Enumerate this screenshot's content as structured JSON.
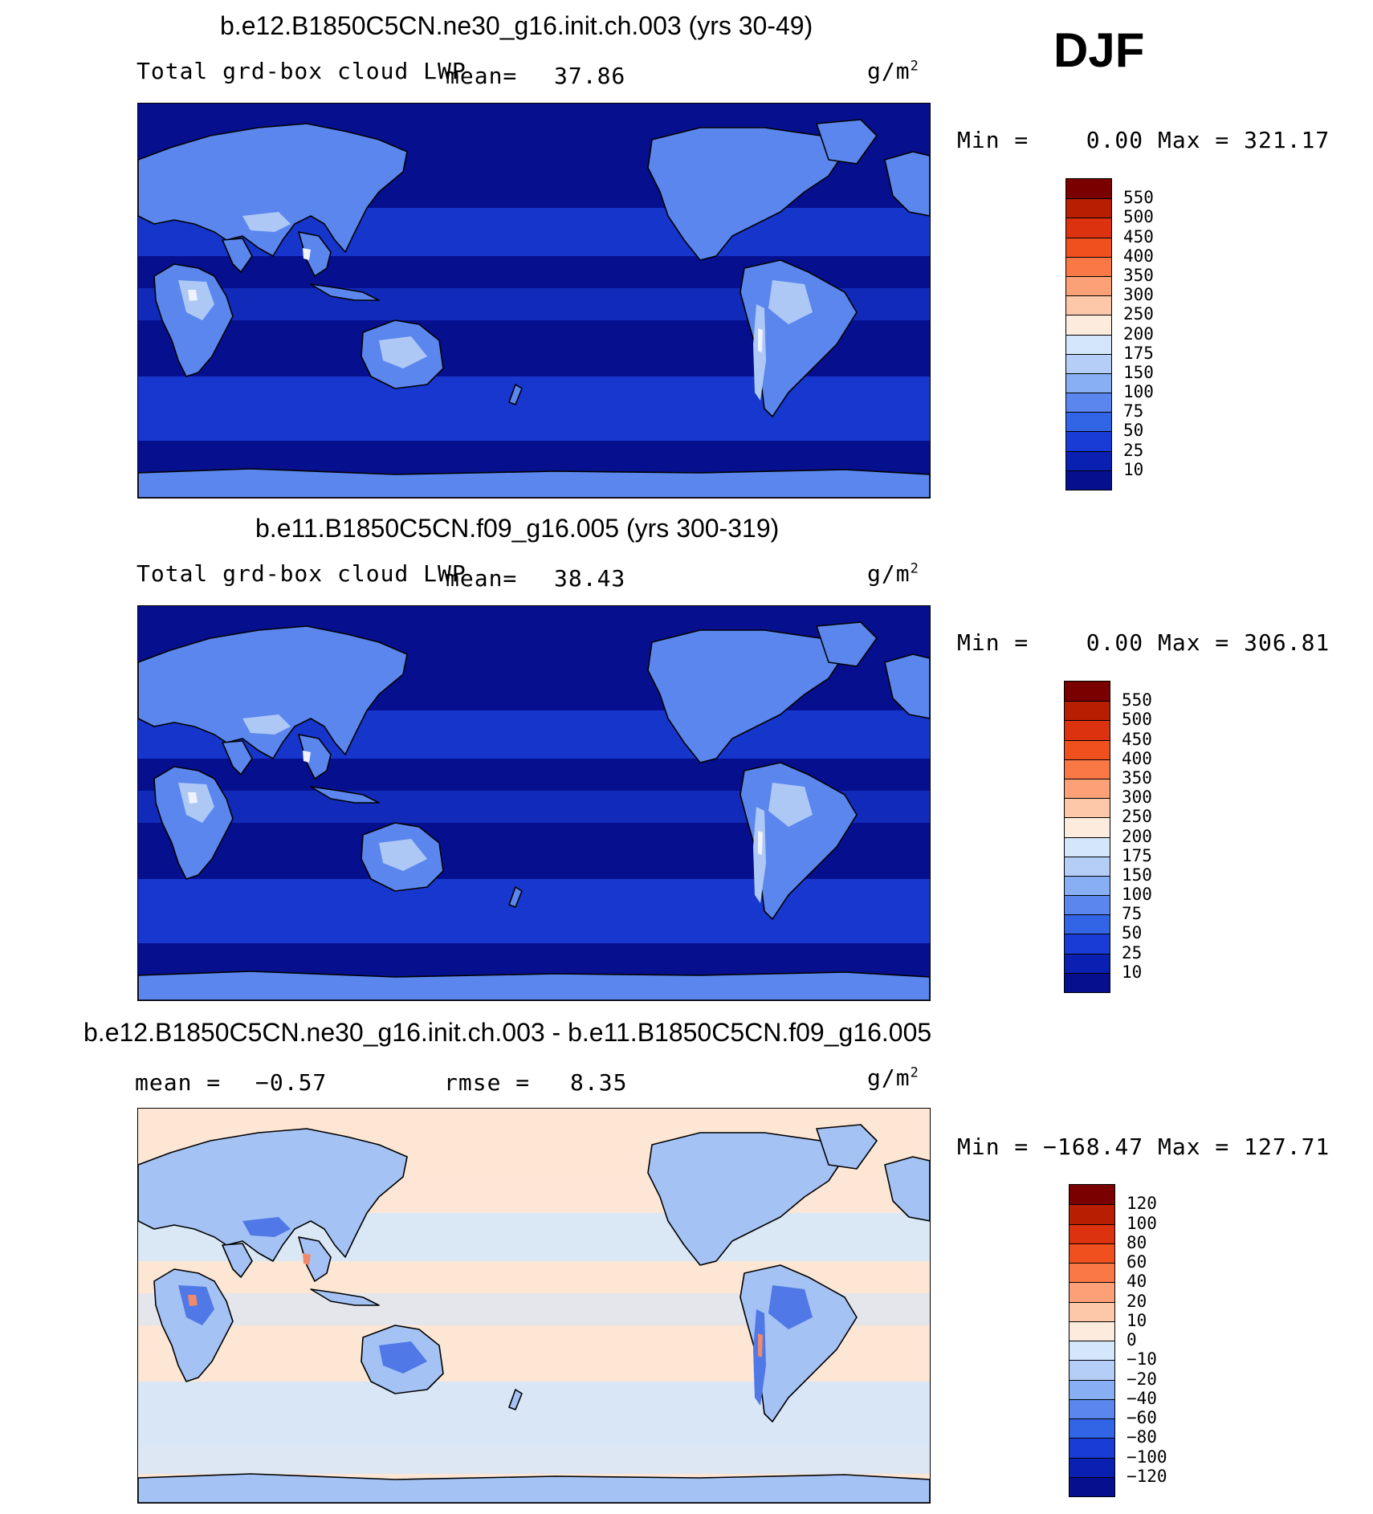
{
  "season": "DJF",
  "panels": [
    {
      "title": "b.e12.B1850C5CN.ne30_g16.init.ch.003 (yrs 30-49)",
      "left_label": "Total grd-box cloud LWP",
      "stat1_label": "mean=",
      "stat1_value": "37.86",
      "stat2_label": "",
      "stat2_value": "",
      "units": "g/m",
      "units_sup": "2",
      "minmax": "Min =    0.00 Max = 321.17",
      "colors": {
        "background": "#06108e",
        "band": "#1a3cd6",
        "land": "#5a86ee",
        "highland": "#aec8f6",
        "peak": "#eef3ff"
      }
    },
    {
      "title": "b.e11.B1850C5CN.f09_g16.005 (yrs 300-319)",
      "left_label": "Total grd-box cloud LWP",
      "stat1_label": "mean=",
      "stat1_value": "38.43",
      "stat2_label": "",
      "stat2_value": "",
      "units": "g/m",
      "units_sup": "2",
      "minmax": "Min =    0.00 Max = 306.81",
      "colors": {
        "background": "#06108e",
        "band": "#1a3cd6",
        "land": "#5a86ee",
        "highland": "#aec8f6",
        "peak": "#eef3ff"
      }
    },
    {
      "title": "b.e12.B1850C5CN.ne30_g16.init.ch.003 - b.e11.B1850C5CN.f09_g16.005",
      "left_label": "mean =",
      "stat1_label": "",
      "stat1_value": "−0.57",
      "stat2_label": "rmse =",
      "stat2_value": "8.35",
      "units": "g/m",
      "units_sup": "2",
      "minmax": "Min = −168.47 Max = 127.71",
      "colors": {
        "background": "#fde6d4",
        "band": "#d4e6fa",
        "land": "#a4c2f4",
        "highland": "#5078e6",
        "peak": "#f08a6a"
      }
    }
  ],
  "colorbars": [
    {
      "labels": [
        "550",
        "500",
        "450",
        "400",
        "350",
        "300",
        "250",
        "200",
        "175",
        "150",
        "100",
        "75",
        "50",
        "25",
        "10"
      ],
      "colors": [
        "#7a0000",
        "#b81e00",
        "#dc3210",
        "#f0501e",
        "#fa7846",
        "#fca078",
        "#fdc8aa",
        "#fdebde",
        "#d4e6fa",
        "#b4cef8",
        "#88aef4",
        "#5a86ee",
        "#3264e6",
        "#1a3cd6",
        "#0a20b0",
        "#06108e"
      ]
    },
    {
      "labels": [
        "550",
        "500",
        "450",
        "400",
        "350",
        "300",
        "250",
        "200",
        "175",
        "150",
        "100",
        "75",
        "50",
        "25",
        "10"
      ],
      "colors": [
        "#7a0000",
        "#b81e00",
        "#dc3210",
        "#f0501e",
        "#fa7846",
        "#fca078",
        "#fdc8aa",
        "#fdebde",
        "#d4e6fa",
        "#b4cef8",
        "#88aef4",
        "#5a86ee",
        "#3264e6",
        "#1a3cd6",
        "#0a20b0",
        "#06108e"
      ]
    },
    {
      "labels": [
        "120",
        "100",
        "80",
        "60",
        "40",
        "20",
        "10",
        "0",
        "−10",
        "−20",
        "−40",
        "−60",
        "−80",
        "−100",
        "−120"
      ],
      "colors": [
        "#7a0000",
        "#b81e00",
        "#dc3210",
        "#f0501e",
        "#fa7846",
        "#fca078",
        "#fdc8aa",
        "#fdebde",
        "#d4e6fa",
        "#b4cef8",
        "#88aef4",
        "#5a86ee",
        "#3264e6",
        "#1a3cd6",
        "#0a20b0",
        "#06108e"
      ]
    }
  ]
}
